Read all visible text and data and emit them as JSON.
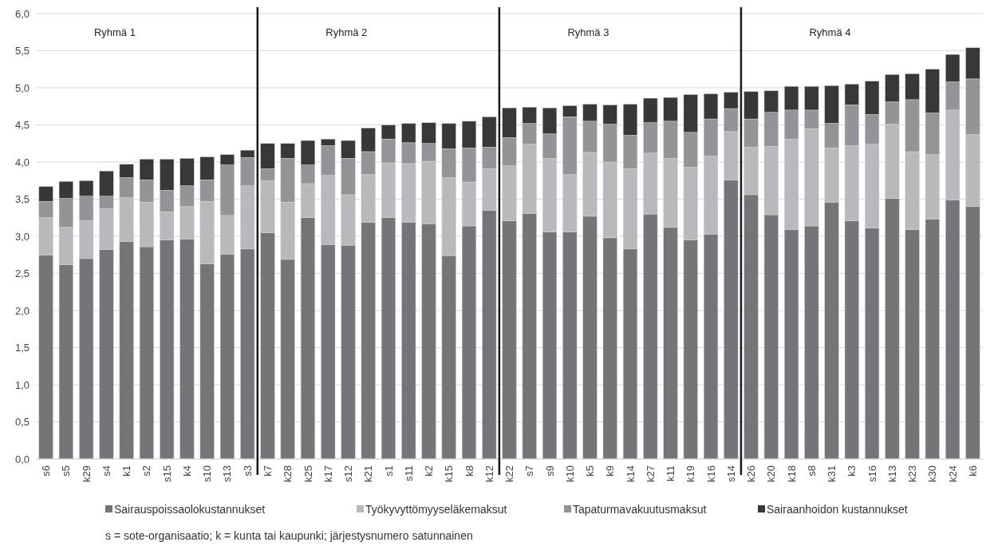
{
  "chart_data": {
    "type": "bar",
    "stacked": true,
    "categories": [
      "s6",
      "s5",
      "k29",
      "s4",
      "k1",
      "s2",
      "s15",
      "k4",
      "s10",
      "s13",
      "s3",
      "k7",
      "k28",
      "k25",
      "k17",
      "s12",
      "k21",
      "s1",
      "s11",
      "k2",
      "k15",
      "k8",
      "k12",
      "k22",
      "s7",
      "s9",
      "k10",
      "k5",
      "k9",
      "k14",
      "k27",
      "k11",
      "k19",
      "k16",
      "s14",
      "k26",
      "k20",
      "k18",
      "s8",
      "k31",
      "k3",
      "s16",
      "k13",
      "k23",
      "k30",
      "k24",
      "k6"
    ],
    "series": [
      {
        "name": "Sairauspoissaolokustannukset",
        "color": "#747578",
        "values": [
          2.75,
          2.62,
          2.7,
          2.82,
          2.93,
          2.86,
          2.95,
          2.96,
          2.63,
          2.76,
          2.83,
          3.05,
          2.69,
          3.25,
          2.89,
          2.88,
          3.19,
          3.25,
          3.19,
          3.17,
          2.74,
          3.14,
          3.35,
          3.21,
          3.31,
          3.06,
          3.06,
          3.27,
          2.98,
          2.83,
          3.3,
          3.12,
          2.95,
          3.03,
          3.76,
          3.56,
          3.29,
          3.09,
          3.14,
          3.46,
          3.21,
          3.11,
          3.51,
          3.09,
          3.23,
          3.49,
          3.4
        ]
      },
      {
        "name": "Työkyvyttömyyseläkemaksut",
        "color": "#b8b9bc",
        "values": [
          0.5,
          0.5,
          0.51,
          0.55,
          0.59,
          0.6,
          0.38,
          0.44,
          0.84,
          0.52,
          0.85,
          0.7,
          0.77,
          0.46,
          0.93,
          0.68,
          0.64,
          0.74,
          0.79,
          0.84,
          1.05,
          0.59,
          0.56,
          0.74,
          0.93,
          0.99,
          0.77,
          0.86,
          1.02,
          1.08,
          0.82,
          0.93,
          0.98,
          1.05,
          0.65,
          0.64,
          0.92,
          1.22,
          1.31,
          0.73,
          1.01,
          1.13,
          1.0,
          1.05,
          0.87,
          1.21,
          0.97
        ]
      },
      {
        "name": "Tapaturmavakuutusmaksut",
        "color": "#939497",
        "values": [
          0.22,
          0.39,
          0.33,
          0.17,
          0.27,
          0.3,
          0.29,
          0.28,
          0.29,
          0.68,
          0.38,
          0.16,
          0.59,
          0.25,
          0.4,
          0.49,
          0.31,
          0.32,
          0.28,
          0.24,
          0.39,
          0.46,
          0.29,
          0.38,
          0.28,
          0.33,
          0.78,
          0.42,
          0.51,
          0.45,
          0.41,
          0.5,
          0.47,
          0.5,
          0.31,
          0.38,
          0.46,
          0.39,
          0.25,
          0.33,
          0.55,
          0.4,
          0.3,
          0.7,
          0.56,
          0.38,
          0.75
        ]
      },
      {
        "name": "Sairaanhoidon kustannukset",
        "color": "#383838",
        "values": [
          0.2,
          0.23,
          0.21,
          0.34,
          0.18,
          0.28,
          0.42,
          0.37,
          0.31,
          0.14,
          0.1,
          0.34,
          0.2,
          0.33,
          0.09,
          0.24,
          0.32,
          0.19,
          0.26,
          0.28,
          0.34,
          0.36,
          0.41,
          0.4,
          0.22,
          0.35,
          0.15,
          0.23,
          0.26,
          0.42,
          0.33,
          0.32,
          0.51,
          0.34,
          0.22,
          0.37,
          0.29,
          0.32,
          0.32,
          0.51,
          0.28,
          0.45,
          0.37,
          0.35,
          0.59,
          0.37,
          0.42
        ]
      }
    ],
    "ylim": [
      0,
      6
    ],
    "yticks": [
      {
        "value": 0,
        "label": "0,0"
      },
      {
        "value": 0.5,
        "label": "0,5"
      },
      {
        "value": 1,
        "label": "1,0"
      },
      {
        "value": 1.5,
        "label": "1,5"
      },
      {
        "value": 2,
        "label": "2,0"
      },
      {
        "value": 2.5,
        "label": "2,5"
      },
      {
        "value": 3,
        "label": "3,0"
      },
      {
        "value": 3.5,
        "label": "3,5"
      },
      {
        "value": 4,
        "label": "4,0"
      },
      {
        "value": 4.5,
        "label": "4,5"
      },
      {
        "value": 5,
        "label": "5,0"
      },
      {
        "value": 5.5,
        "label": "5,5"
      },
      {
        "value": 6,
        "label": "6,0"
      }
    ],
    "grid": "y",
    "legend": "bottom",
    "annotations": [
      "Ryhmä 1",
      "Ryhmä 2",
      "Ryhmä 3",
      "Ryhmä 4",
      "s = sote-organisaatio; k = kunta tai kaupunki; järjestysnumero satunnainen"
    ]
  }
}
